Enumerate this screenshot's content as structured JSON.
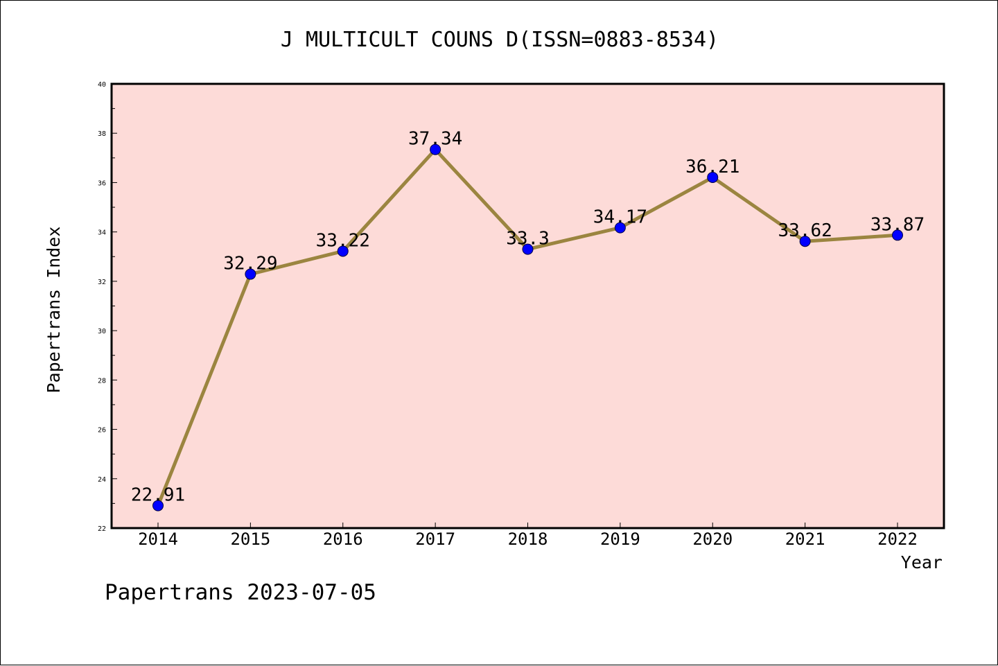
{
  "chart_data": {
    "type": "line",
    "title": "J MULTICULT COUNS D(ISSN=0883-8534)",
    "xlabel": "Year",
    "ylabel": "Papertrans Index",
    "x": [
      "2014",
      "2015",
      "2016",
      "2017",
      "2018",
      "2019",
      "2020",
      "2021",
      "2022"
    ],
    "series": [
      {
        "values": [
          22.91,
          32.29,
          33.22,
          37.34,
          33.3,
          34.17,
          36.21,
          33.62,
          33.87
        ],
        "labels": [
          "22.91",
          "32.29",
          "33.22",
          "37.34",
          "33.3",
          "34.17",
          "36.21",
          "33.62",
          "33.87"
        ]
      }
    ],
    "ylim": [
      22,
      40
    ],
    "yticks": [
      "22",
      "24",
      "26",
      "28",
      "30",
      "32",
      "34",
      "36",
      "38",
      "40"
    ],
    "grid": false,
    "legend": "none",
    "plot_background": "#fddbd8",
    "line_color": "#9b8540",
    "marker_color": "#0000ff"
  },
  "footer": "Papertrans 2023-07-05"
}
